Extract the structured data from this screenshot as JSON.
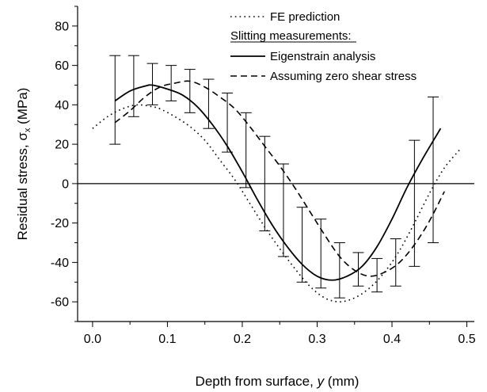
{
  "chart_data": {
    "type": "line",
    "xlabel_pre": "Depth from surface, ",
    "xlabel_var": "y",
    "xlabel_post": " (mm)",
    "ylabel_pre": "Residual stress, ",
    "ylabel_sym": "σ",
    "ylabel_sub": "x",
    "ylabel_post": " (MPa)",
    "xlim": [
      -0.02,
      0.51
    ],
    "ylim": [
      -70,
      90
    ],
    "xticks": [
      0.0,
      0.1,
      0.2,
      0.3,
      0.4,
      0.5
    ],
    "xtick_labels": [
      "0.0",
      "0.1",
      "0.2",
      "0.3",
      "0.4",
      "0.5"
    ],
    "yticks": [
      -60,
      -40,
      -20,
      0,
      20,
      40,
      60,
      80
    ],
    "ytick_labels": [
      "-60",
      "-40",
      "-20",
      "0",
      "20",
      "40",
      "60",
      "80"
    ],
    "zero_line": true,
    "grid": false,
    "legend_position": "top-right",
    "legend_heading": "Slitting measurements:",
    "series": [
      {
        "name": "FE prediction",
        "style": "dotted",
        "x": [
          0.0,
          0.02,
          0.04,
          0.06,
          0.08,
          0.09,
          0.11,
          0.13,
          0.15,
          0.17,
          0.19,
          0.21,
          0.23,
          0.25,
          0.27,
          0.29,
          0.31,
          0.33,
          0.35,
          0.37,
          0.39,
          0.41,
          0.43,
          0.45,
          0.47,
          0.49
        ],
        "y": [
          28,
          34,
          38,
          40,
          39,
          38,
          34,
          29,
          22,
          12,
          2,
          -10,
          -22,
          -33,
          -43,
          -52,
          -58,
          -60,
          -58,
          -53,
          -45,
          -34,
          -20,
          -5,
          8,
          17
        ]
      },
      {
        "name": "Eigenstrain analysis",
        "style": "solid",
        "x": [
          0.03,
          0.05,
          0.07,
          0.08,
          0.1,
          0.12,
          0.14,
          0.16,
          0.18,
          0.2,
          0.22,
          0.24,
          0.26,
          0.28,
          0.3,
          0.32,
          0.34,
          0.36,
          0.38,
          0.4,
          0.42,
          0.44,
          0.465
        ],
        "y": [
          42,
          47,
          49.5,
          50,
          48,
          45,
          39,
          30,
          19,
          6,
          -8,
          -21,
          -32,
          -41,
          -47,
          -49,
          -47,
          -42,
          -32,
          -18,
          -2,
          12,
          28
        ]
      },
      {
        "name": "Assuming zero shear stress",
        "style": "dashed",
        "x": [
          0.03,
          0.05,
          0.07,
          0.09,
          0.11,
          0.13,
          0.15,
          0.17,
          0.19,
          0.21,
          0.23,
          0.25,
          0.27,
          0.29,
          0.31,
          0.33,
          0.35,
          0.37,
          0.39,
          0.41,
          0.43,
          0.45,
          0.47
        ],
        "y": [
          31,
          37,
          44,
          49,
          51,
          52,
          49,
          44,
          38,
          29,
          19,
          9,
          -2,
          -14,
          -26,
          -37,
          -44,
          -47,
          -45,
          -40,
          -31,
          -19,
          -4
        ]
      }
    ],
    "error_bars": [
      {
        "x": 0.03,
        "low": 20,
        "high": 65
      },
      {
        "x": 0.055,
        "low": 34,
        "high": 65
      },
      {
        "x": 0.08,
        "low": 40,
        "high": 61
      },
      {
        "x": 0.105,
        "low": 42,
        "high": 60
      },
      {
        "x": 0.13,
        "low": 36,
        "high": 58
      },
      {
        "x": 0.155,
        "low": 28,
        "high": 53
      },
      {
        "x": 0.18,
        "low": 16,
        "high": 46
      },
      {
        "x": 0.205,
        "low": -2,
        "high": 36
      },
      {
        "x": 0.23,
        "low": -24,
        "high": 24
      },
      {
        "x": 0.255,
        "low": -37,
        "high": 10
      },
      {
        "x": 0.28,
        "low": -50,
        "high": -12
      },
      {
        "x": 0.305,
        "low": -53,
        "high": -18
      },
      {
        "x": 0.33,
        "low": -58,
        "high": -30
      },
      {
        "x": 0.355,
        "low": -52,
        "high": -35
      },
      {
        "x": 0.38,
        "low": -55,
        "high": -38
      },
      {
        "x": 0.405,
        "low": -52,
        "high": -28
      },
      {
        "x": 0.43,
        "low": -42,
        "high": 22
      },
      {
        "x": 0.455,
        "low": -30,
        "high": 44
      }
    ]
  }
}
